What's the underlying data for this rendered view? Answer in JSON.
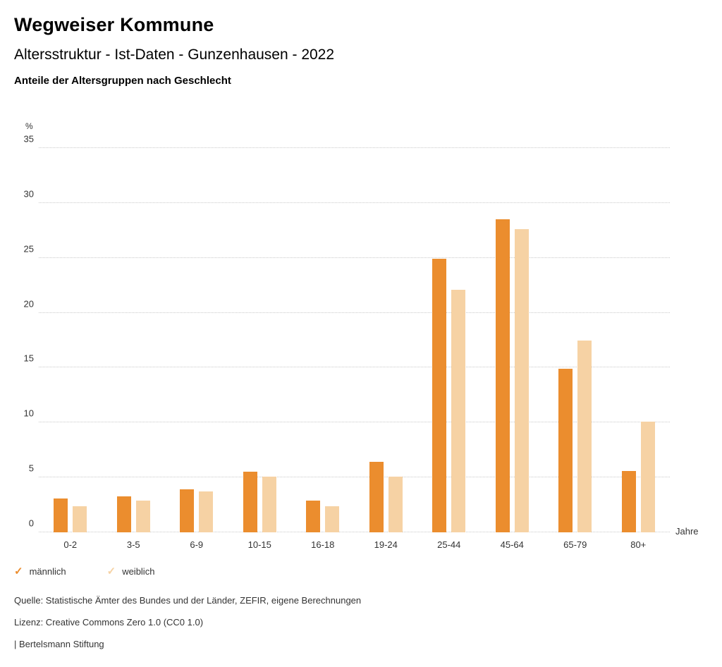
{
  "header": {
    "title": "Wegweiser Kommune",
    "subtitle": "Altersstruktur - Ist-Daten - Gunzenhausen - 2022",
    "chart_heading": "Anteile der Altersgruppen nach Geschlecht"
  },
  "chart_data": {
    "type": "bar",
    "title": "Anteile der Altersgruppen nach Geschlecht",
    "unit_label": "%",
    "x_unit_label": "Jahre",
    "categories": [
      "0-2",
      "3-5",
      "6-9",
      "10-15",
      "16-18",
      "19-24",
      "25-44",
      "45-64",
      "65-79",
      "80+"
    ],
    "series": [
      {
        "name": "männlich",
        "color": "#EB8D2E",
        "values": [
          3.1,
          3.3,
          3.9,
          5.5,
          2.9,
          6.4,
          24.9,
          28.5,
          14.9,
          5.6
        ]
      },
      {
        "name": "weiblich",
        "color": "#F6D2A4",
        "values": [
          2.4,
          2.9,
          3.7,
          5.1,
          2.4,
          5.1,
          22.1,
          27.6,
          17.5,
          10.1
        ]
      }
    ],
    "ylim": [
      0,
      35
    ],
    "ytick_step": 5,
    "grid": "dotted-horizontal",
    "legend_position": "bottom-left"
  },
  "legend": {
    "check_icon": "✓",
    "items": [
      {
        "label": "männlich",
        "color": "#EB8D2E"
      },
      {
        "label": "weiblich",
        "color": "#F6D2A4"
      }
    ]
  },
  "footer": {
    "source": "Quelle: Statistische Ämter des Bundes und der Länder, ZEFIR, eigene Berechnungen",
    "license": "Lizenz: Creative Commons Zero 1.0 (CC0 1.0)",
    "attribution": "| Bertelsmann Stiftung"
  }
}
